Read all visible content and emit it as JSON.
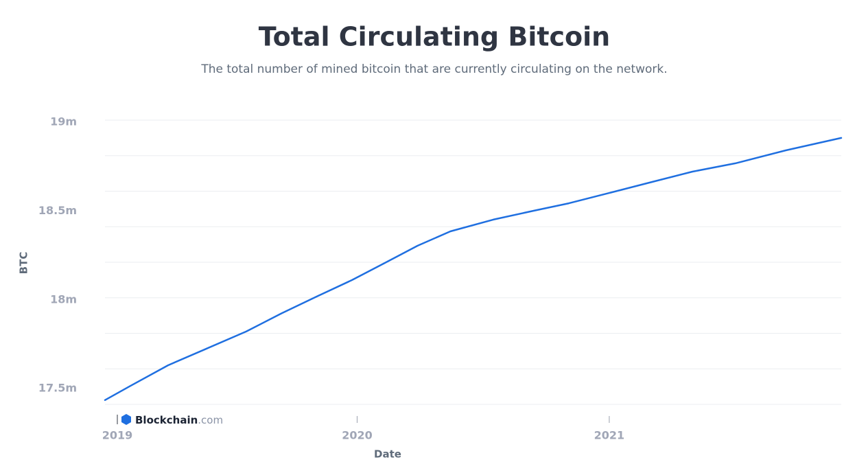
{
  "chart_data": {
    "type": "line",
    "title": "Total Circulating Bitcoin",
    "subtitle": "The total number of mined bitcoin that are currently circulating on the network.",
    "x_label": "Date",
    "y_label": "BTC",
    "branding": {
      "name": "Blockchain",
      "suffix": ".com"
    },
    "x": [
      2019.0,
      2019.1,
      2019.25,
      2019.4,
      2019.56,
      2019.7,
      2019.84,
      2019.98,
      2020.11,
      2020.24,
      2020.37,
      2020.54,
      2020.7,
      2020.84,
      2021.0,
      2021.17,
      2021.33,
      2021.5,
      2021.7,
      2021.92
    ],
    "values": [
      17424000,
      17503000,
      17620000,
      17712000,
      17810000,
      17912000,
      18007000,
      18100000,
      18196000,
      18293000,
      18374000,
      18440000,
      18490000,
      18532000,
      18590000,
      18652000,
      18710000,
      18757000,
      18830000,
      18900000
    ],
    "color": "#1f6fe0",
    "xlim": [
      2019,
      2021.92
    ],
    "xticks": [
      2019,
      2020,
      2021
    ],
    "ylim": [
      17400000,
      19000000
    ],
    "yticks": [
      {
        "value": 17500000,
        "label": "17.5m"
      },
      {
        "value": 18000000,
        "label": "18m"
      },
      {
        "value": 18500000,
        "label": "18.5m"
      },
      {
        "value": 19000000,
        "label": "19m"
      }
    ],
    "ygrid": [
      17400000,
      17600000,
      17800000,
      18000000,
      18200000,
      18400000,
      18600000,
      18800000,
      19000000
    ],
    "grid": true
  }
}
